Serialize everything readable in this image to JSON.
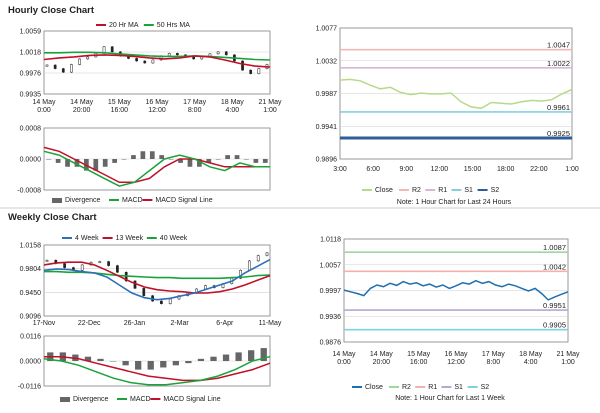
{
  "colors": {
    "grid": "#cfcfcf",
    "axis": "#999999",
    "text": "#222222",
    "ma20": "#c0102a",
    "ma50": "#1aa33a",
    "candle": "#222222",
    "macd": "#1aa33a",
    "signal": "#c0102a",
    "divergence": "#666666",
    "close_light": "#b6d98a",
    "r2": "#f2b8b8",
    "r1": "#d6b7d6",
    "s1": "#86cfe0",
    "s2": "#2f5d9c",
    "wk4": "#2f6fb8",
    "wk13": "#c0102a",
    "wk40": "#1aa33a",
    "close_blue": "#1f6fb0",
    "w_r2": "#9ed89e",
    "w_r1": "#f4b0b0",
    "w_s1": "#b9a7d4",
    "w_s2": "#7fd0e0"
  },
  "sections": {
    "hourly_title": "Hourly Close Chart",
    "weekly_title": "Weekly Close Chart"
  },
  "chart_data": [
    {
      "id": "hourly_price",
      "type": "line",
      "title": "Hourly Close Chart",
      "legend": [
        "20 Hr MA",
        "50 Hrs MA"
      ],
      "x_ticks": [
        "14 May\n0:00",
        "14 May\n20:00",
        "15 May\n16:00",
        "16 May\n12:00",
        "17 May\n8:00",
        "18 May\n4:00",
        "21 May\n1:00"
      ],
      "y_ticks": [
        "1.0059",
        "1.0018",
        "0.9976",
        "0.9935"
      ],
      "ylim": [
        0.9935,
        1.0059
      ],
      "series": [
        {
          "name": "20 Hr MA",
          "values": [
            1.0003,
            1.0006,
            1.0008,
            1.0011,
            1.0012,
            1.0011,
            1.0009,
            1.0006,
            1.0004,
            1.0006,
            1.001,
            1.0008,
            1.0002,
            0.9995,
            0.999,
            0.9988
          ]
        },
        {
          "name": "50 Hrs MA",
          "values": [
            1.0016,
            1.0016,
            1.0017,
            1.0017,
            1.0016,
            1.0014,
            1.0012,
            1.001,
            1.0009,
            1.0009,
            1.001,
            1.0009,
            1.0007,
            1.0005,
            1.0003,
            1.0002
          ]
        }
      ],
      "candles": [
        0.9992,
        0.9985,
        0.9978,
        0.9993,
        1.0004,
        1.0008,
        1.0015,
        1.0028,
        1.0018,
        1.001,
        1.0005,
        1.0,
        0.9996,
        1.0002,
        1.001,
        1.0015,
        1.0012,
        1.0008,
        1.0004,
        1.0008,
        1.0014,
        1.0018,
        1.0012,
        1.0,
        0.9982,
        0.9975,
        0.9985,
        0.9993
      ]
    },
    {
      "id": "hourly_macd",
      "type": "line",
      "legend": [
        "Divergence",
        "MACD",
        "MACD Signal Line"
      ],
      "y_ticks": [
        "0.0008",
        "0.0000",
        "-0.0008"
      ],
      "ylim": [
        -0.0008,
        0.0008
      ],
      "series": [
        {
          "name": "MACD",
          "values": [
            0.0002,
            0.0001,
            -0.0001,
            -0.0003,
            -0.0005,
            -0.0007,
            -0.0006,
            -0.0003,
            0.0,
            0.0001,
            0.0,
            -0.0002,
            -0.0003,
            -0.0001,
            -0.0002,
            -0.0002
          ]
        },
        {
          "name": "MACD Signal Line",
          "values": [
            0.0003,
            0.0002,
            0.0,
            -0.0002,
            -0.0004,
            -0.0006,
            -0.0006,
            -0.0005,
            -0.0002,
            0.0,
            0.0,
            -0.0001,
            -0.0002,
            -0.0002,
            -0.0002,
            -0.0002
          ]
        }
      ],
      "divergence": [
        0.0,
        -0.0001,
        -0.0002,
        -0.0002,
        -0.0003,
        -0.0003,
        -0.0002,
        -0.0001,
        0.0,
        0.0001,
        0.0002,
        0.0002,
        0.0001,
        0.0,
        -0.0001,
        -0.0002,
        -0.0002,
        -0.0001,
        0.0,
        0.0001,
        0.0001,
        0.0,
        -0.0001,
        -0.0001
      ]
    },
    {
      "id": "hourly_levels",
      "type": "line",
      "x_ticks": [
        "3:00",
        "6:00",
        "9:00",
        "12:00",
        "15:00",
        "18:00",
        "22:00",
        "1:00"
      ],
      "y_ticks": [
        "1.0077",
        "1.0032",
        "0.9987",
        "0.9941",
        "0.9896"
      ],
      "ylim": [
        0.9896,
        1.0077
      ],
      "levels": [
        {
          "name": "R2",
          "value": 1.0047,
          "label": "1.0047"
        },
        {
          "name": "R1",
          "value": 1.0022,
          "label": "1.0022"
        },
        {
          "name": "S1",
          "value": 0.9961,
          "label": "0.9961"
        },
        {
          "name": "S2",
          "value": 0.9925,
          "label": "0.9925"
        }
      ],
      "series": [
        {
          "name": "Close",
          "values": [
            1.0005,
            1.0006,
            1.0004,
            0.9998,
            0.9993,
            0.9995,
            0.9988,
            0.9985,
            0.9987,
            0.9986,
            0.9986,
            0.9987,
            0.9975,
            0.9968,
            0.9966,
            0.9974,
            0.9973,
            0.9972,
            0.9975,
            0.9977,
            0.9976,
            0.9978,
            0.9986,
            0.9992
          ]
        }
      ],
      "legend": [
        "Close",
        "R2",
        "R1",
        "S1",
        "S2"
      ],
      "note": "Note: 1 Hour Chart for Last 24 Hours"
    },
    {
      "id": "weekly_price",
      "type": "line",
      "title": "Weekly Close Chart",
      "legend": [
        "4 Week",
        "13 Week",
        "40 Week"
      ],
      "x_ticks": [
        "17-Nov",
        "22-Dec",
        "26-Jan",
        "2-Mar",
        "6-Apr",
        "11-May"
      ],
      "y_ticks": [
        "1.0158",
        "0.9804",
        "0.9450",
        "0.9096"
      ],
      "ylim": [
        0.9096,
        1.0158
      ],
      "series": [
        {
          "name": "4 Week",
          "values": [
            0.978,
            0.98,
            0.979,
            0.976,
            0.974,
            0.968,
            0.956,
            0.944,
            0.937,
            0.934,
            0.936,
            0.94,
            0.944,
            0.95,
            0.956,
            0.962,
            0.974,
            0.984,
            0.994
          ]
        },
        {
          "name": "13 Week",
          "values": [
            0.986,
            0.989,
            0.99,
            0.99,
            0.986,
            0.978,
            0.969,
            0.96,
            0.953,
            0.949,
            0.947,
            0.946,
            0.944,
            0.944,
            0.946,
            0.95,
            0.956,
            0.963,
            0.97
          ]
        },
        {
          "name": "40 Week",
          "values": [
            0.976,
            0.976,
            0.975,
            0.975,
            0.974,
            0.972,
            0.97,
            0.969,
            0.968,
            0.967,
            0.967,
            0.966,
            0.966,
            0.966,
            0.966,
            0.967,
            0.968,
            0.97,
            0.971
          ]
        }
      ],
      "candles": [
        0.993,
        0.988,
        0.982,
        0.978,
        0.986,
        0.99,
        0.991,
        0.985,
        0.975,
        0.962,
        0.951,
        0.94,
        0.932,
        0.928,
        0.935,
        0.94,
        0.944,
        0.95,
        0.955,
        0.952,
        0.958,
        0.966,
        0.978,
        0.992,
        1.0,
        1.004
      ]
    },
    {
      "id": "weekly_macd",
      "type": "line",
      "legend": [
        "Divergence",
        "MACD",
        "MACD Signal Line"
      ],
      "y_ticks": [
        "0.0116",
        "0.0000",
        "-0.0116"
      ],
      "ylim": [
        -0.0116,
        0.0116
      ],
      "series": [
        {
          "name": "MACD",
          "values": [
            0.001,
            0.0,
            -0.002,
            -0.005,
            -0.008,
            -0.01,
            -0.011,
            -0.011,
            -0.01,
            -0.009,
            -0.007,
            -0.004,
            0.0,
            0.002
          ]
        },
        {
          "name": "MACD Signal Line",
          "values": [
            0.002,
            0.002,
            0.001,
            -0.001,
            -0.003,
            -0.005,
            -0.007,
            -0.008,
            -0.009,
            -0.009,
            -0.008,
            -0.006,
            -0.004,
            -0.001
          ]
        }
      ],
      "divergence": [
        0.004,
        0.004,
        0.003,
        0.002,
        0.001,
        0.0,
        -0.002,
        -0.004,
        -0.004,
        -0.003,
        -0.002,
        -0.001,
        0.001,
        0.002,
        0.003,
        0.004,
        0.005,
        0.006
      ]
    },
    {
      "id": "weekly_levels",
      "type": "line",
      "x_ticks": [
        "14 May\n0:00",
        "14 May\n20:00",
        "15 May\n16:00",
        "16 May\n12:00",
        "17 May\n8:00",
        "18 May\n4:00",
        "21 May\n1:00"
      ],
      "y_ticks": [
        "1.0118",
        "1.0057",
        "0.9997",
        "0.9936",
        "0.9876"
      ],
      "ylim": [
        0.9876,
        1.0118
      ],
      "levels": [
        {
          "name": "R2",
          "value": 1.0087,
          "label": "1.0087"
        },
        {
          "name": "R1",
          "value": 1.0042,
          "label": "1.0042"
        },
        {
          "name": "S1",
          "value": 0.9951,
          "label": "0.9951"
        },
        {
          "name": "S2",
          "value": 0.9905,
          "label": "0.9905"
        }
      ],
      "series": [
        {
          "name": "Close",
          "values": [
            0.9998,
            0.9994,
            0.999,
            0.9985,
            1.0002,
            1.001,
            1.0006,
            1.0014,
            1.0009,
            1.0018,
            1.0012,
            1.0015,
            1.0008,
            1.0012,
            1.0005,
            1.001,
            1.0002,
            1.0008,
            1.0015,
            1.0012,
            1.002,
            1.0014,
            1.0018,
            1.001,
            1.0006,
            1.0012,
            1.0008,
            1.0002,
            0.9996,
            1.0002,
            0.999,
            0.9975,
            0.9982,
            0.9988,
            0.9994
          ]
        }
      ],
      "legend": [
        "Close",
        "R2",
        "R1",
        "S1",
        "S2"
      ],
      "note": "Note: 1 Hour Chart for Last 1 Week"
    }
  ]
}
